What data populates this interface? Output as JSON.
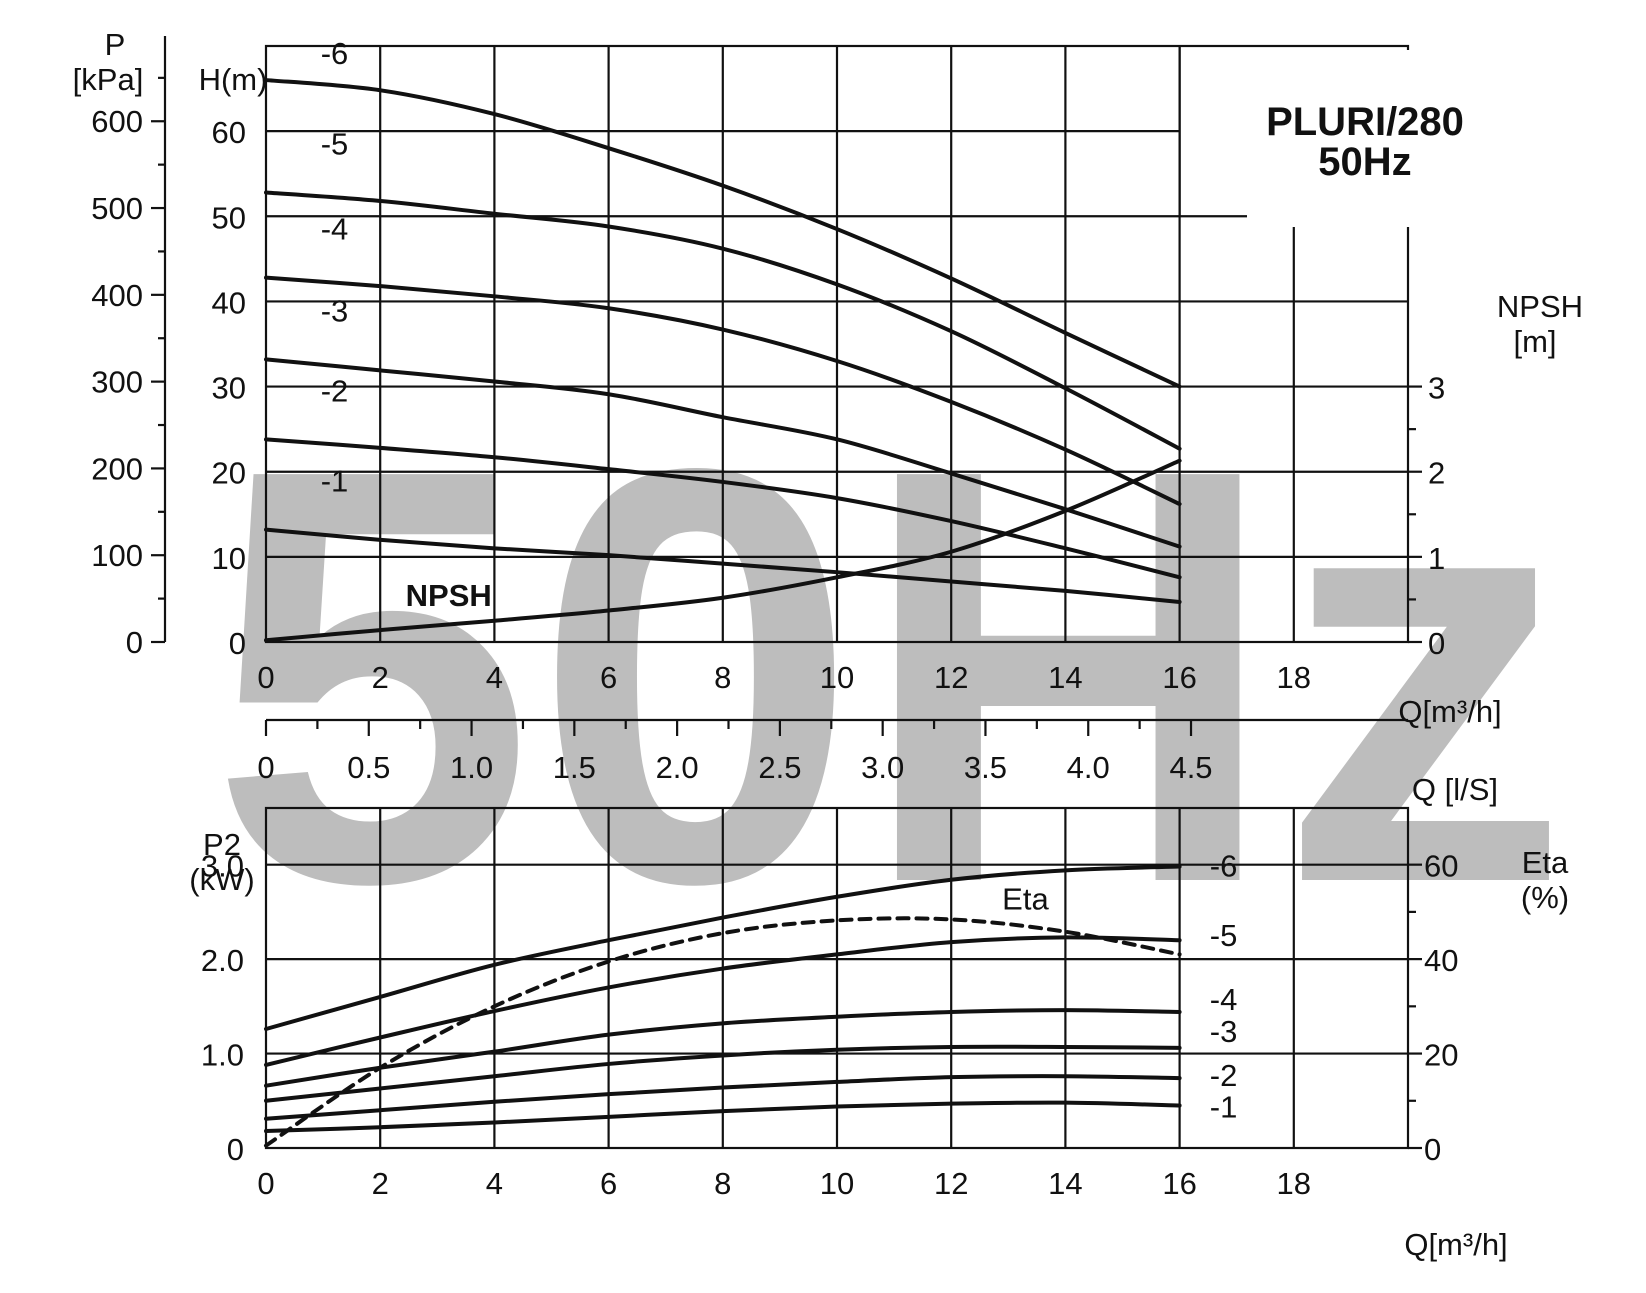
{
  "chart_data": [
    {
      "type": "line",
      "title": [
        "PLURI/280",
        "50Hz"
      ],
      "watermark": "50Hz",
      "x_axis": {
        "label_flow_m3h": "Q[m³/h]",
        "ticks_m3h": [
          "0",
          "2",
          "4",
          "6",
          "8",
          "10",
          "12",
          "14",
          "16",
          "18"
        ],
        "xlim": [
          0,
          20
        ],
        "label_flow_ls": "Q [l/S]",
        "ticks_ls": [
          "0",
          "0.5",
          "1.0",
          "1.5",
          "2.0",
          "2.5",
          "3.0",
          "3.5",
          "4.0",
          "4.5"
        ]
      },
      "y_axes": {
        "pressure": {
          "label": [
            "P",
            "[kPa]"
          ],
          "ticks": [
            "0",
            "100",
            "200",
            "300",
            "400",
            "500",
            "600"
          ]
        },
        "head": {
          "label": "H(m)",
          "ticks": [
            "0",
            "10",
            "20",
            "30",
            "40",
            "50",
            "60"
          ],
          "ylim": [
            0,
            70
          ]
        },
        "npsh": {
          "label": [
            "NPSH",
            "[m]"
          ],
          "ticks": [
            "0",
            "1",
            "2",
            "3"
          ],
          "ylim": [
            0,
            7
          ]
        }
      },
      "grid": true,
      "head_series": [
        {
          "name": "-6",
          "x": [
            0,
            2,
            4,
            6,
            8,
            10,
            12,
            14,
            16
          ],
          "y": [
            66,
            64.8,
            62,
            58,
            53.6,
            48.5,
            42.7,
            36.3,
            30
          ]
        },
        {
          "name": "-5",
          "x": [
            0,
            2,
            4,
            6,
            8,
            10,
            12,
            14,
            16
          ],
          "y": [
            52.8,
            51.8,
            50.3,
            48.8,
            46.2,
            42,
            36.5,
            29.8,
            22.7
          ]
        },
        {
          "name": "-4",
          "x": [
            0,
            2,
            4,
            6,
            8,
            10,
            12,
            14,
            16
          ],
          "y": [
            42.8,
            41.8,
            40.6,
            39.2,
            36.7,
            33,
            28.2,
            22.6,
            16.2
          ]
        },
        {
          "name": "-3",
          "x": [
            0,
            2,
            4,
            6,
            8,
            10,
            12,
            14,
            16
          ],
          "y": [
            33.2,
            31.9,
            30.6,
            29.1,
            26.4,
            23.8,
            19.8,
            15.6,
            11.2
          ]
        },
        {
          "name": "-2",
          "x": [
            0,
            2,
            4,
            6,
            8,
            10,
            12,
            14,
            16
          ],
          "y": [
            23.8,
            22.8,
            21.7,
            20.3,
            18.8,
            16.9,
            14.2,
            11,
            7.6
          ]
        },
        {
          "name": "-1",
          "x": [
            0,
            2,
            4,
            6,
            8,
            10,
            12,
            14,
            16
          ],
          "y": [
            13.2,
            12,
            11,
            10.2,
            9.2,
            8.2,
            7.1,
            6,
            4.7
          ]
        }
      ],
      "npsh_series": {
        "name": "NPSH",
        "x": [
          0,
          2,
          4,
          6,
          8,
          10,
          12,
          14,
          16
        ],
        "y": [
          0.02,
          0.14,
          0.25,
          0.37,
          0.52,
          0.76,
          1.06,
          1.54,
          2.13
        ]
      }
    },
    {
      "type": "line",
      "x_axis": {
        "label": "Q[m³/h]",
        "ticks": [
          "0",
          "2",
          "4",
          "6",
          "8",
          "10",
          "12",
          "14",
          "16",
          "18"
        ],
        "xlim": [
          0,
          20
        ]
      },
      "y_axes": {
        "power": {
          "label": [
            "P2",
            "(kW)"
          ],
          "ticks": [
            "0",
            "1.0",
            "2.0",
            "3.0"
          ],
          "ylim": [
            0,
            3.6
          ]
        },
        "efficiency": {
          "label": [
            "Eta",
            "(%)"
          ],
          "ticks": [
            "0",
            "20",
            "40",
            "60"
          ],
          "ylim": [
            0,
            72
          ]
        }
      },
      "grid": true,
      "power_series": [
        {
          "name": "-6",
          "x": [
            0,
            2,
            4,
            6,
            8,
            10,
            12,
            14,
            16
          ],
          "y": [
            1.26,
            1.6,
            1.94,
            2.2,
            2.44,
            2.66,
            2.84,
            2.94,
            2.98
          ]
        },
        {
          "name": "-5",
          "x": [
            0,
            2,
            4,
            6,
            8,
            10,
            12,
            14,
            16
          ],
          "y": [
            0.88,
            1.17,
            1.45,
            1.7,
            1.9,
            2.05,
            2.18,
            2.23,
            2.2
          ]
        },
        {
          "name": "-4",
          "x": [
            0,
            2,
            4,
            6,
            8,
            10,
            12,
            14,
            16
          ],
          "y": [
            0.66,
            0.85,
            1.02,
            1.2,
            1.32,
            1.39,
            1.44,
            1.46,
            1.44
          ]
        },
        {
          "name": "-3",
          "x": [
            0,
            2,
            4,
            6,
            8,
            10,
            12,
            14,
            16
          ],
          "y": [
            0.5,
            0.63,
            0.76,
            0.89,
            0.98,
            1.04,
            1.07,
            1.07,
            1.06
          ]
        },
        {
          "name": "-2",
          "x": [
            0,
            2,
            4,
            6,
            8,
            10,
            12,
            14,
            16
          ],
          "y": [
            0.31,
            0.4,
            0.49,
            0.57,
            0.64,
            0.7,
            0.75,
            0.76,
            0.74
          ]
        },
        {
          "name": "-1",
          "x": [
            0,
            2,
            4,
            6,
            8,
            10,
            12,
            14,
            16
          ],
          "y": [
            0.18,
            0.22,
            0.27,
            0.33,
            0.39,
            0.44,
            0.47,
            0.48,
            0.45
          ]
        }
      ],
      "efficiency_series": {
        "name": "Eta",
        "x": [
          0,
          2,
          4,
          6,
          8,
          10,
          12,
          14,
          16
        ],
        "y": [
          0.5,
          17,
          30,
          39.5,
          45.5,
          48.2,
          48.4,
          45.8,
          41
        ]
      }
    }
  ]
}
